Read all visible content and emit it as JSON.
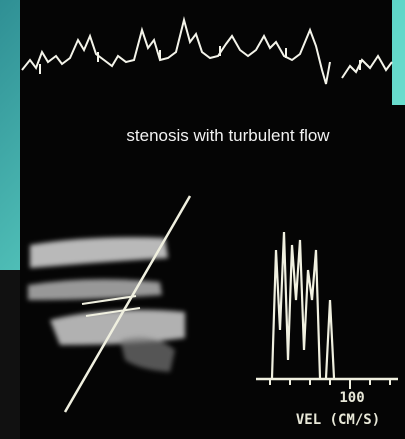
{
  "caption": "stenosis with turbulent flow",
  "doppler": {
    "scale_label": "100",
    "axis_label": "VEL (CM/S)"
  }
}
